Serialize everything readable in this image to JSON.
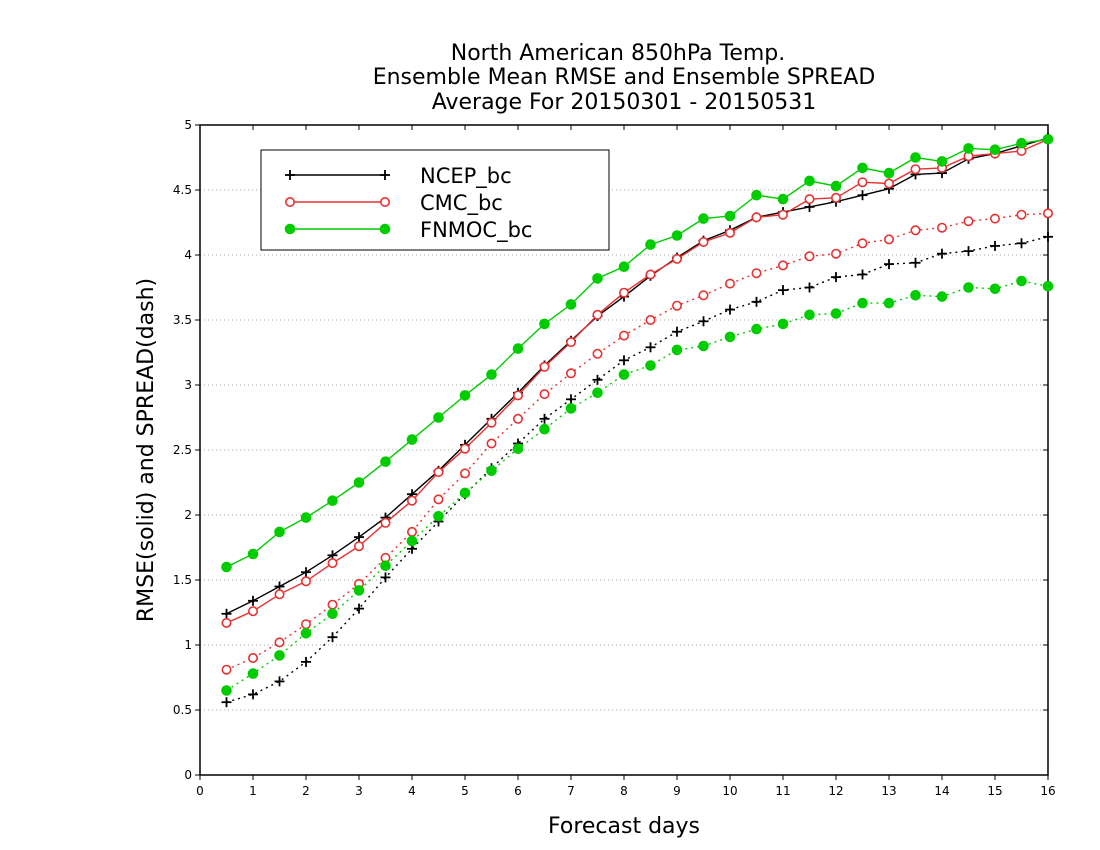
{
  "chart_data": {
    "type": "line",
    "title": [
      "North American 850hPa Temp.",
      "Ensemble Mean RMSE and Ensemble SPREAD",
      "Average For 20150301 - 20150531"
    ],
    "xlabel": "Forecast days",
    "ylabel": "RMSE(solid) and SPREAD(dash)",
    "xlim": [
      0,
      16
    ],
    "ylim": [
      0,
      5
    ],
    "xticks": [
      0,
      1,
      2,
      3,
      4,
      5,
      6,
      7,
      8,
      9,
      10,
      11,
      12,
      13,
      14,
      15,
      16
    ],
    "yticks": [
      0,
      0.5,
      1,
      1.5,
      2,
      2.5,
      3,
      3.5,
      4,
      4.5,
      5
    ],
    "ytick_labels": [
      "0",
      "0.5",
      "1",
      "1.5",
      "2",
      "2.5",
      "3",
      "3.5",
      "4",
      "4.5",
      "5"
    ],
    "grid": true,
    "legend_position": "top-left",
    "x": [
      0.5,
      1,
      1.5,
      2,
      2.5,
      3,
      3.5,
      4,
      4.5,
      5,
      5.5,
      6,
      6.5,
      7,
      7.5,
      8,
      8.5,
      9,
      9.5,
      10,
      10.5,
      11,
      11.5,
      12,
      12.5,
      13,
      13.5,
      14,
      14.5,
      15,
      15.5,
      16
    ],
    "series": [
      {
        "name": "NCEP_bc",
        "color": "#000000",
        "marker": "plus",
        "style": "solid",
        "values": [
          1.24,
          1.34,
          1.45,
          1.56,
          1.69,
          1.83,
          1.98,
          2.16,
          2.34,
          2.54,
          2.74,
          2.94,
          3.15,
          3.34,
          3.53,
          3.68,
          3.84,
          3.98,
          4.11,
          4.19,
          4.29,
          4.33,
          4.37,
          4.41,
          4.46,
          4.51,
          4.62,
          4.63,
          4.74,
          4.78,
          4.84,
          4.9
        ]
      },
      {
        "name": "CMC_bc",
        "color": "#e83030",
        "marker": "circle-open",
        "style": "solid",
        "values": [
          1.17,
          1.26,
          1.39,
          1.49,
          1.63,
          1.76,
          1.94,
          2.11,
          2.33,
          2.51,
          2.71,
          2.92,
          3.14,
          3.33,
          3.54,
          3.71,
          3.85,
          3.97,
          4.1,
          4.17,
          4.29,
          4.31,
          4.43,
          4.44,
          4.56,
          4.55,
          4.66,
          4.67,
          4.76,
          4.78,
          4.8,
          4.89
        ]
      },
      {
        "name": "FNMOC_bc",
        "color": "#00cc00",
        "marker": "circle-filled",
        "style": "solid",
        "values": [
          1.6,
          1.7,
          1.87,
          1.98,
          2.11,
          2.25,
          2.41,
          2.58,
          2.75,
          2.92,
          3.08,
          3.28,
          3.47,
          3.62,
          3.82,
          3.91,
          4.08,
          4.15,
          4.28,
          4.3,
          4.46,
          4.43,
          4.57,
          4.53,
          4.67,
          4.63,
          4.75,
          4.72,
          4.82,
          4.81,
          4.86,
          4.89
        ]
      },
      {
        "name": "NCEP_bc spread",
        "color": "#000000",
        "marker": "plus",
        "style": "dash",
        "values": [
          0.56,
          0.62,
          0.72,
          0.87,
          1.06,
          1.28,
          1.52,
          1.74,
          1.95,
          2.16,
          2.36,
          2.55,
          2.74,
          2.89,
          3.04,
          3.19,
          3.29,
          3.41,
          3.49,
          3.58,
          3.64,
          3.73,
          3.75,
          3.83,
          3.85,
          3.93,
          3.94,
          4.01,
          4.03,
          4.07,
          4.09,
          4.14
        ]
      },
      {
        "name": "CMC_bc spread",
        "color": "#e83030",
        "marker": "circle-open",
        "style": "dash",
        "values": [
          0.81,
          0.9,
          1.02,
          1.16,
          1.31,
          1.47,
          1.67,
          1.87,
          2.12,
          2.32,
          2.55,
          2.74,
          2.93,
          3.09,
          3.24,
          3.38,
          3.5,
          3.61,
          3.69,
          3.78,
          3.86,
          3.92,
          3.99,
          4.01,
          4.09,
          4.12,
          4.19,
          4.21,
          4.26,
          4.28,
          4.31,
          4.32
        ]
      },
      {
        "name": "FNMOC_bc spread",
        "color": "#00cc00",
        "marker": "circle-filled",
        "style": "dash",
        "values": [
          0.65,
          0.78,
          0.92,
          1.09,
          1.24,
          1.42,
          1.61,
          1.8,
          1.99,
          2.17,
          2.34,
          2.51,
          2.66,
          2.82,
          2.94,
          3.08,
          3.15,
          3.27,
          3.3,
          3.37,
          3.43,
          3.47,
          3.54,
          3.55,
          3.63,
          3.63,
          3.69,
          3.68,
          3.75,
          3.74,
          3.8,
          3.76
        ]
      }
    ],
    "legend": [
      {
        "label": "NCEP_bc",
        "series": 0
      },
      {
        "label": "CMC_bc",
        "series": 1
      },
      {
        "label": "FNMOC_bc",
        "series": 2
      }
    ]
  }
}
